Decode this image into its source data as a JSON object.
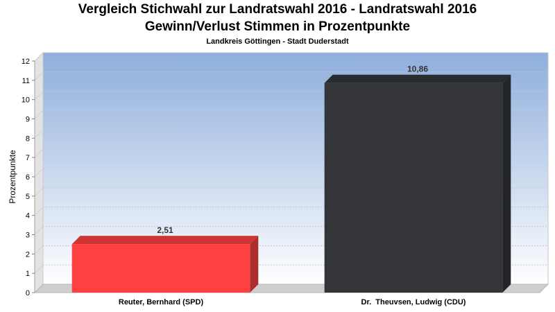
{
  "chart_data": {
    "type": "bar",
    "title": "Vergleich Stichwahl zur Landratswahl 2016 - Landratswahl 2016",
    "title_line2": "Gewinn/Verlust Stimmen in Prozentpunkte",
    "subtitle": "Landkreis Göttingen - Stadt Duderstadt",
    "xlabel": "",
    "ylabel": "Prozentpunkte",
    "categories": [
      "Reuter, Bernhard (SPD)",
      "Dr.  Theuvsen, Ludwig (CDU)"
    ],
    "values": [
      2.51,
      10.86
    ],
    "data_labels": [
      "2,51",
      "10,86"
    ],
    "bar_colors": [
      "#ff4040",
      "#333538"
    ],
    "ylim": [
      0,
      12
    ],
    "yticks": [
      0,
      1,
      2,
      3,
      4,
      5,
      6,
      7,
      8,
      9,
      10,
      11,
      12
    ],
    "grid": true,
    "legend": "none",
    "plot_background": [
      "#8eaedc",
      "#ffffff"
    ]
  }
}
